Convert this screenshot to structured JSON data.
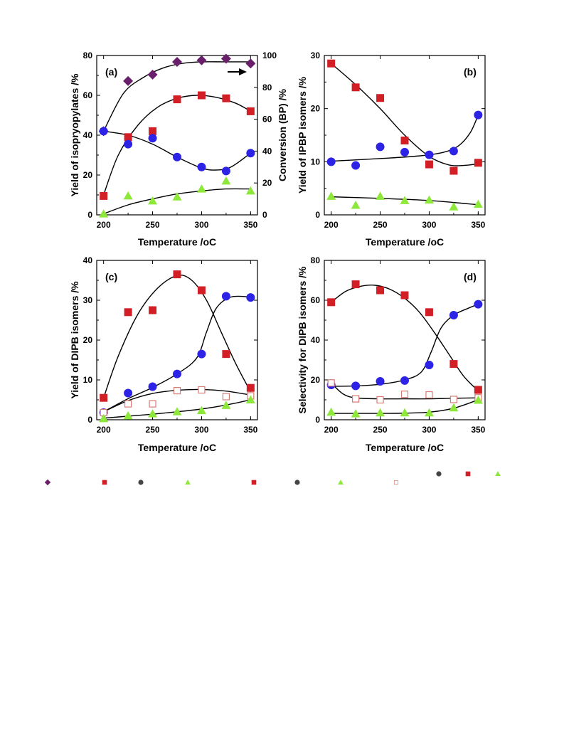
{
  "colors": {
    "diamond": "#6a1f6a",
    "red": "#d21f26",
    "blue": "#2d23e6",
    "green": "#8ee83a",
    "pink_hollow": "#d87b72",
    "legend_dot": "#444444",
    "curve": "#000000"
  },
  "chart_data": [
    {
      "id": "a",
      "type": "scatter",
      "label": "(a)",
      "xlabel": "Temperature /oC",
      "ylabel": "Yield of isopryopylates /%",
      "y2label": "Conversion (BP) /%",
      "xlim": [
        193,
        357
      ],
      "ylim": [
        0,
        80
      ],
      "y2lim": [
        0,
        100
      ],
      "xticks": [
        200,
        250,
        300,
        350
      ],
      "yticks": [
        0,
        20,
        40,
        60,
        80
      ],
      "y2ticks": [
        0,
        20,
        40,
        60,
        80,
        100
      ],
      "arrow": "right-axis",
      "series": [
        {
          "marker": "diamond",
          "color": "diamond",
          "axis": "right",
          "x": [
            200,
            225,
            250,
            275,
            300,
            325,
            350
          ],
          "y": [
            52.5,
            84,
            88,
            96,
            97,
            98,
            95
          ],
          "curve": [
            [
              200,
              52.5
            ],
            [
              220,
              76
            ],
            [
              240,
              86
            ],
            [
              260,
              92
            ],
            [
              280,
              95
            ],
            [
              300,
              96
            ],
            [
              325,
              96
            ],
            [
              350,
              96
            ]
          ]
        },
        {
          "marker": "square",
          "color": "red",
          "axis": "left",
          "x": [
            200,
            225,
            250,
            275,
            300,
            325,
            350
          ],
          "y": [
            9.5,
            39,
            42,
            58,
            60,
            58.5,
            52
          ],
          "curve": [
            [
              200,
              10
            ],
            [
              215,
              30
            ],
            [
              235,
              45
            ],
            [
              255,
              54
            ],
            [
              275,
              58.5
            ],
            [
              295,
              60
            ],
            [
              315,
              59
            ],
            [
              335,
              56
            ],
            [
              350,
              52
            ]
          ]
        },
        {
          "marker": "circle",
          "color": "blue",
          "axis": "left",
          "x": [
            200,
            225,
            250,
            275,
            300,
            325,
            350
          ],
          "y": [
            42,
            35.5,
            38.5,
            29,
            24,
            22,
            31
          ],
          "curve": [
            [
              200,
              42
            ],
            [
              225,
              40
            ],
            [
              250,
              35.5
            ],
            [
              275,
              29
            ],
            [
              300,
              23.5
            ],
            [
              315,
              22.5
            ],
            [
              330,
              24
            ],
            [
              350,
              31
            ]
          ]
        },
        {
          "marker": "triangle",
          "color": "green",
          "axis": "left",
          "x": [
            200,
            225,
            250,
            275,
            300,
            325,
            350
          ],
          "y": [
            0.5,
            9.5,
            7,
            9,
            13,
            17,
            12
          ],
          "curve": [
            [
              200,
              0.5
            ],
            [
              225,
              5
            ],
            [
              250,
              8
            ],
            [
              275,
              10.5
            ],
            [
              300,
              12
            ],
            [
              325,
              13
            ],
            [
              350,
              13
            ]
          ]
        }
      ]
    },
    {
      "id": "b",
      "type": "scatter",
      "label": "(b)",
      "xlabel": "Temperature /oC",
      "ylabel": "Yield of IPBP isomers /%",
      "xlim": [
        193,
        357
      ],
      "ylim": [
        0,
        30
      ],
      "xticks": [
        200,
        250,
        300,
        350
      ],
      "yticks": [
        0,
        10,
        20,
        30
      ],
      "series": [
        {
          "marker": "square",
          "color": "red",
          "x": [
            200,
            225,
            250,
            275,
            300,
            325,
            350
          ],
          "y": [
            28.5,
            24,
            22,
            14,
            9.5,
            8.3,
            9.8
          ],
          "curve": [
            [
              200,
              28.5
            ],
            [
              225,
              24.5
            ],
            [
              250,
              20
            ],
            [
              275,
              15
            ],
            [
              300,
              11
            ],
            [
              320,
              9.4
            ],
            [
              335,
              9.3
            ],
            [
              350,
              9.6
            ]
          ]
        },
        {
          "marker": "circle",
          "color": "blue",
          "x": [
            200,
            225,
            250,
            275,
            300,
            325,
            350
          ],
          "y": [
            10,
            9.3,
            12.8,
            11.8,
            11.3,
            12,
            18.8
          ],
          "curve": [
            [
              200,
              10.1
            ],
            [
              250,
              10.6
            ],
            [
              290,
              11.1
            ],
            [
              315,
              11.8
            ],
            [
              330,
              13
            ],
            [
              342,
              15.5
            ],
            [
              350,
              18.8
            ]
          ]
        },
        {
          "marker": "triangle",
          "color": "green",
          "x": [
            200,
            225,
            250,
            275,
            300,
            325,
            350
          ],
          "y": [
            3.5,
            1.8,
            3.5,
            2.7,
            2.8,
            1.5,
            2
          ],
          "curve": [
            [
              200,
              3.4
            ],
            [
              250,
              3.1
            ],
            [
              300,
              2.7
            ],
            [
              350,
              1.9
            ]
          ]
        }
      ]
    },
    {
      "id": "c",
      "type": "scatter",
      "label": "(c)",
      "xlabel": "Temperature /oC",
      "ylabel": "Yield of DIPB isomers /%",
      "xlim": [
        193,
        357
      ],
      "ylim": [
        0,
        40
      ],
      "xticks": [
        200,
        250,
        300,
        350
      ],
      "yticks": [
        0,
        10,
        20,
        30,
        40
      ],
      "series": [
        {
          "marker": "square",
          "color": "red",
          "x": [
            200,
            225,
            250,
            275,
            300,
            325,
            350
          ],
          "y": [
            5.5,
            27,
            27.5,
            36.5,
            32.5,
            16.5,
            8
          ],
          "curve": [
            [
              200,
              5.5
            ],
            [
              215,
              16
            ],
            [
              235,
              26.5
            ],
            [
              255,
              33
            ],
            [
              275,
              36.2
            ],
            [
              290,
              35
            ],
            [
              305,
              30
            ],
            [
              320,
              22
            ],
            [
              335,
              14
            ],
            [
              350,
              7
            ]
          ]
        },
        {
          "marker": "circle",
          "color": "blue",
          "x": [
            200,
            225,
            250,
            275,
            300,
            325,
            350
          ],
          "y": [
            1.8,
            6.7,
            8.3,
            11.5,
            16.5,
            31,
            30.7
          ],
          "curve": [
            [
              200,
              2
            ],
            [
              225,
              5.3
            ],
            [
              250,
              8.1
            ],
            [
              275,
              11.5
            ],
            [
              295,
              15.5
            ],
            [
              305,
              22
            ],
            [
              315,
              28
            ],
            [
              330,
              30.8
            ],
            [
              350,
              30.8
            ]
          ]
        },
        {
          "marker": "square-hollow",
          "color": "pink_hollow",
          "x": [
            200,
            225,
            250,
            275,
            300,
            325,
            350
          ],
          "y": [
            1.8,
            4,
            4,
            7.3,
            7.5,
            5.8,
            6
          ],
          "curve": [
            [
              200,
              2
            ],
            [
              225,
              4.8
            ],
            [
              250,
              6.6
            ],
            [
              275,
              7.4
            ],
            [
              300,
              7.6
            ],
            [
              325,
              7.2
            ],
            [
              350,
              6.2
            ]
          ]
        },
        {
          "marker": "triangle",
          "color": "green",
          "x": [
            200,
            225,
            250,
            275,
            300,
            325,
            350
          ],
          "y": [
            0.3,
            1,
            1.5,
            2,
            2.3,
            3.6,
            5
          ],
          "curve": [
            [
              200,
              0.4
            ],
            [
              225,
              0.9
            ],
            [
              250,
              1.4
            ],
            [
              275,
              2
            ],
            [
              300,
              2.7
            ],
            [
              325,
              3.7
            ],
            [
              350,
              5
            ]
          ]
        }
      ]
    },
    {
      "id": "d",
      "type": "scatter",
      "label": "(d)",
      "xlabel": "Temperature /oC",
      "ylabel": "Selectivity for DIPB isomers /%",
      "xlim": [
        193,
        357
      ],
      "ylim": [
        0,
        80
      ],
      "xticks": [
        200,
        250,
        300,
        350
      ],
      "yticks": [
        0,
        20,
        40,
        60,
        80
      ],
      "series": [
        {
          "marker": "square",
          "color": "red",
          "x": [
            200,
            225,
            250,
            275,
            300,
            325,
            350
          ],
          "y": [
            59,
            68,
            65,
            62.5,
            54,
            28,
            15
          ],
          "curve": [
            [
              200,
              59
            ],
            [
              215,
              64.5
            ],
            [
              230,
              67
            ],
            [
              245,
              67.5
            ],
            [
              260,
              65.5
            ],
            [
              275,
              61
            ],
            [
              290,
              54
            ],
            [
              305,
              44
            ],
            [
              320,
              33
            ],
            [
              335,
              22
            ],
            [
              350,
              14.5
            ]
          ]
        },
        {
          "marker": "circle",
          "color": "blue",
          "x": [
            200,
            225,
            250,
            275,
            300,
            325,
            350
          ],
          "y": [
            17.5,
            17,
            19.3,
            19.7,
            27.5,
            52.5,
            58
          ],
          "curve": [
            [
              200,
              16.8
            ],
            [
              225,
              17
            ],
            [
              250,
              17.8
            ],
            [
              275,
              20
            ],
            [
              292,
              24
            ],
            [
              302,
              34
            ],
            [
              312,
              46
            ],
            [
              325,
              52.5
            ],
            [
              340,
              56
            ],
            [
              350,
              58
            ]
          ]
        },
        {
          "marker": "square-hollow",
          "color": "pink_hollow",
          "x": [
            200,
            225,
            250,
            275,
            300,
            325,
            350
          ],
          "y": [
            18.5,
            10.5,
            10,
            12.8,
            12.5,
            10.2,
            11
          ],
          "curve": [
            [
              200,
              18.5
            ],
            [
              212,
              13
            ],
            [
              225,
              11
            ],
            [
              250,
              10.5
            ],
            [
              275,
              10.5
            ],
            [
              300,
              10.5
            ],
            [
              325,
              10.8
            ],
            [
              350,
              11
            ]
          ]
        },
        {
          "marker": "triangle",
          "color": "green",
          "x": [
            200,
            225,
            250,
            275,
            300,
            325,
            350
          ],
          "y": [
            3.8,
            3,
            3.5,
            3.5,
            3.5,
            6,
            9.8
          ],
          "curve": [
            [
              200,
              3.2
            ],
            [
              225,
              3.2
            ],
            [
              250,
              3.2
            ],
            [
              275,
              3.3
            ],
            [
              300,
              3.8
            ],
            [
              325,
              5.8
            ],
            [
              350,
              10
            ]
          ]
        }
      ]
    }
  ],
  "legend_markers_row1": [
    {
      "marker": "circle",
      "color": "legend_dot"
    },
    {
      "marker": "square",
      "color": "red"
    },
    {
      "marker": "triangle",
      "color": "green"
    }
  ],
  "legend_markers_row2": [
    {
      "marker": "diamond",
      "color": "diamond"
    },
    {
      "marker": "square",
      "color": "red"
    },
    {
      "marker": "circle",
      "color": "legend_dot"
    },
    {
      "marker": "triangle",
      "color": "green"
    },
    {
      "marker": "square",
      "color": "red"
    },
    {
      "marker": "circle",
      "color": "legend_dot"
    },
    {
      "marker": "triangle",
      "color": "green"
    },
    {
      "marker": "square-hollow",
      "color": "pink_hollow"
    }
  ]
}
